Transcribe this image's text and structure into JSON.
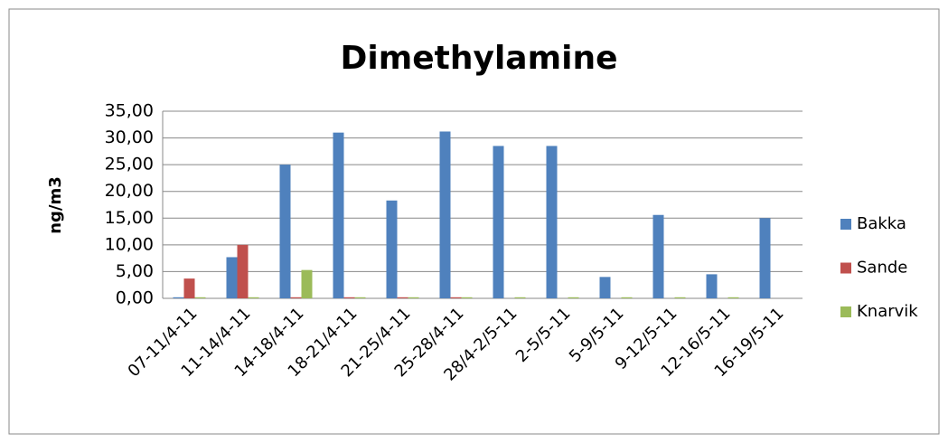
{
  "chart_data": {
    "type": "bar",
    "title": "Dimethylamine",
    "y_label": "ng/m3",
    "categories": [
      "07-11/4-11",
      "11-14/4-11",
      "14-18/4-11",
      "18-21/4-11",
      "21-25/4-11",
      "25-28/4-11",
      "28/4-2/5-11",
      "2-5/5-11",
      "5-9/5-11",
      "9-12/5-11",
      "12-16/5-11",
      "16-19/5-11"
    ],
    "series": [
      {
        "name": "Bakka",
        "color": "#4f81bd",
        "values": [
          0.2,
          7.7,
          25.0,
          31.0,
          18.3,
          31.2,
          28.5,
          28.5,
          4.0,
          15.6,
          4.5,
          15.0
        ]
      },
      {
        "name": "Sande",
        "color": "#c0504d",
        "values": [
          3.7,
          10.0,
          0.2,
          0.2,
          0.2,
          0.2,
          0,
          0,
          0,
          0,
          0,
          0
        ]
      },
      {
        "name": "Knarvik",
        "color": "#9bbb59",
        "values": [
          0.2,
          0.2,
          5.3,
          0.2,
          0.2,
          0.2,
          0.2,
          0.2,
          0.2,
          0.2,
          0.2,
          0
        ]
      }
    ],
    "ylim": [
      0,
      35
    ],
    "yticks": [
      {
        "value": 0,
        "label": "0,00"
      },
      {
        "value": 5,
        "label": "5,00"
      },
      {
        "value": 10,
        "label": "10,00"
      },
      {
        "value": 15,
        "label": "15,00"
      },
      {
        "value": 20,
        "label": "20,00"
      },
      {
        "value": 25,
        "label": "25,00"
      },
      {
        "value": 30,
        "label": "30,00"
      },
      {
        "value": 35,
        "label": "35,00"
      }
    ],
    "grid": true,
    "legend": "right"
  }
}
